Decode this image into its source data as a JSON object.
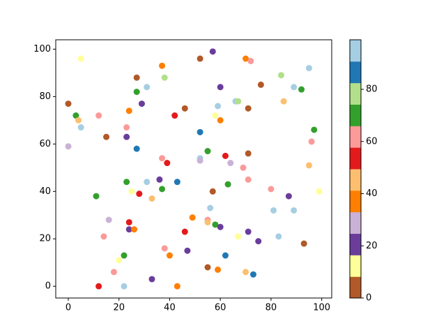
{
  "chart_data": {
    "type": "scatter",
    "x": [
      5,
      37,
      57,
      52,
      70,
      72,
      95,
      84,
      27,
      38,
      76,
      89,
      60,
      92,
      31,
      27,
      29,
      0,
      66,
      67,
      59,
      46,
      71,
      24,
      85,
      3,
      12,
      42,
      58,
      4,
      60,
      5,
      23,
      97,
      52,
      23,
      15,
      96,
      0,
      27,
      55,
      71,
      62,
      52,
      52,
      37,
      39,
      64,
      69,
      95,
      36,
      31,
      43,
      71,
      23,
      63,
      80,
      37,
      57,
      25,
      99,
      28,
      87,
      11,
      33,
      56,
      81,
      89,
      49,
      55,
      55,
      16,
      24,
      58,
      60,
      24,
      26,
      46,
      71,
      14,
      67,
      83,
      75,
      93,
      38,
      47,
      22,
      40,
      62,
      20,
      55,
      59,
      18,
      70,
      73,
      33,
      12,
      22,
      43
    ],
    "y": [
      96,
      93,
      99,
      96,
      96,
      95,
      92,
      89,
      88,
      88,
      85,
      84,
      84,
      83,
      84,
      82,
      77,
      77,
      78,
      78,
      76,
      75,
      75,
      74,
      78,
      72,
      72,
      72,
      72,
      70,
      70,
      67,
      67,
      66,
      65,
      63,
      63,
      61,
      59,
      58,
      57,
      56,
      55,
      54,
      53,
      54,
      52,
      52,
      50,
      51,
      45,
      44,
      44,
      45,
      44,
      43,
      41,
      41,
      40,
      40,
      40,
      39,
      38,
      38,
      37,
      33,
      32,
      32,
      29,
      28,
      27,
      28,
      27,
      26,
      25,
      24,
      24,
      23,
      23,
      21,
      21,
      21,
      19,
      18,
      16,
      15,
      13,
      13,
      13,
      11,
      8,
      7,
      6,
      6,
      5,
      3,
      0,
      0,
      0
    ],
    "c": [
      12,
      37,
      20,
      4,
      37,
      62,
      95,
      78,
      4,
      78,
      4,
      95,
      20,
      70,
      95,
      70,
      20,
      4,
      95,
      78,
      95,
      4,
      4,
      37,
      45,
      70,
      62,
      53,
      12,
      45,
      37,
      95,
      62,
      70,
      86,
      20,
      4,
      62,
      29,
      86,
      70,
      4,
      53,
      95,
      29,
      62,
      53,
      29,
      62,
      45,
      20,
      95,
      86,
      62,
      70,
      70,
      62,
      70,
      4,
      12,
      12,
      53,
      20,
      70,
      45,
      95,
      95,
      95,
      37,
      62,
      45,
      29,
      53,
      70,
      20,
      20,
      37,
      53,
      20,
      62,
      12,
      95,
      20,
      4,
      62,
      20,
      70,
      37,
      86,
      12,
      4,
      37,
      62,
      45,
      86,
      20,
      53,
      95,
      37
    ],
    "colormap": [
      "#b15928",
      "#ffff99",
      "#6a3d9a",
      "#cab2d6",
      "#ff7f00",
      "#fdbf6f",
      "#e31a1c",
      "#fb9a99",
      "#33a02c",
      "#b2df8a",
      "#1f78b4",
      "#a6cee3"
    ],
    "clim": [
      0,
      99
    ],
    "cticks": [
      0,
      20,
      40,
      60,
      80
    ],
    "xlim": [
      -4.95,
      103.95
    ],
    "xticks": [
      0,
      20,
      40,
      60,
      80,
      100
    ],
    "ylim": [
      -4.95,
      103.95
    ],
    "yticks": [
      0,
      20,
      40,
      60,
      80,
      100
    ]
  }
}
